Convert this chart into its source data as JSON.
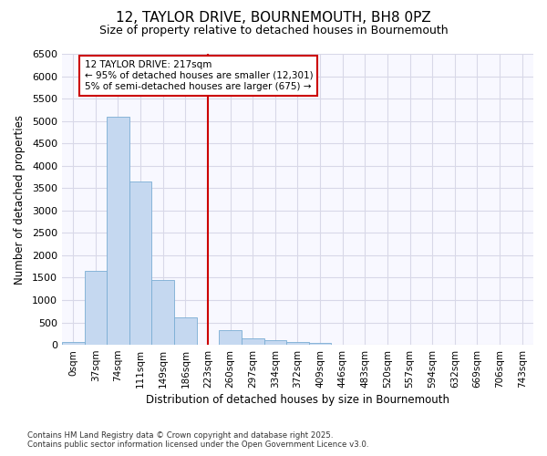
{
  "title": "12, TAYLOR DRIVE, BOURNEMOUTH, BH8 0PZ",
  "subtitle": "Size of property relative to detached houses in Bournemouth",
  "xlabel": "Distribution of detached houses by size in Bournemouth",
  "ylabel": "Number of detached properties",
  "bar_labels": [
    "0sqm",
    "37sqm",
    "74sqm",
    "111sqm",
    "149sqm",
    "186sqm",
    "223sqm",
    "260sqm",
    "297sqm",
    "334sqm",
    "372sqm",
    "409sqm",
    "446sqm",
    "483sqm",
    "520sqm",
    "557sqm",
    "594sqm",
    "632sqm",
    "669sqm",
    "706sqm",
    "743sqm"
  ],
  "bar_values": [
    70,
    1650,
    5100,
    3650,
    1450,
    620,
    0,
    320,
    140,
    100,
    70,
    50,
    0,
    0,
    0,
    0,
    0,
    0,
    0,
    0,
    0
  ],
  "bar_color": "#c5d8f0",
  "bar_edge_color": "#7aadd4",
  "vline_x_index": 6,
  "vline_color": "#cc0000",
  "annotation_line1": "12 TAYLOR DRIVE: 217sqm",
  "annotation_line2": "← 95% of detached houses are smaller (12,301)",
  "annotation_line3": "5% of semi-detached houses are larger (675) →",
  "annotation_box_color": "#cc0000",
  "ylim": [
    0,
    6500
  ],
  "yticks": [
    0,
    500,
    1000,
    1500,
    2000,
    2500,
    3000,
    3500,
    4000,
    4500,
    5000,
    5500,
    6000,
    6500
  ],
  "footnote1": "Contains HM Land Registry data © Crown copyright and database right 2025.",
  "footnote2": "Contains public sector information licensed under the Open Government Licence v3.0.",
  "bg_color": "#ffffff",
  "plot_bg_color": "#f8f8ff",
  "grid_color": "#d8d8e8"
}
